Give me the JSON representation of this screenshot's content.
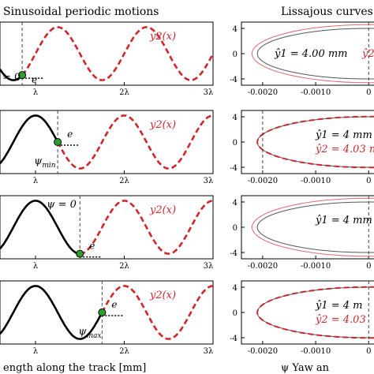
{
  "figure": {
    "left_title": "Sinusoidal periodic motions",
    "right_title": "Lissajous curves",
    "left_xlabel": "ength along the track [mm]",
    "right_xlabel": "ψ Yaw an",
    "left_xticks": [
      "λ",
      "2λ",
      "3λ"
    ],
    "right_xticks": [
      "-0.0020",
      "-0.0010",
      "0"
    ],
    "right_yticks": [
      "4",
      "0",
      "-4"
    ],
    "colors": {
      "y1": "#000000",
      "y2": "#d0262b",
      "marker": "#2aa02b",
      "thin": "#e06a6e"
    }
  },
  "chart_data": [
    {
      "type": "line",
      "panel": "left",
      "row": 1,
      "x_unit": "λ",
      "xlim": [
        0.6,
        3.0
      ],
      "series": [
        {
          "name": "y_1",
          "style": "black solid",
          "x_range": [
            0.6,
            0.85
          ],
          "amplitude": 1,
          "phase_offset": 0
        },
        {
          "name": "y2(x)",
          "style": "red dashed",
          "x_range": [
            0.85,
            3.0
          ],
          "amplitude": 1,
          "phase_offset": 0
        }
      ],
      "annotations": {
        "legend": "y2(x)",
        "e_label": "e",
        "psi_label": "= 0",
        "marker_x": 0.85
      }
    },
    {
      "type": "line",
      "panel": "left",
      "row": 2,
      "x_unit": "λ",
      "xlim": [
        0.6,
        3.0
      ],
      "series": [
        {
          "name": "y_1",
          "style": "black solid",
          "x_range": [
            0.6,
            1.25
          ],
          "amplitude": 1,
          "phase_offset": 0.25
        },
        {
          "name": "y2(x)",
          "style": "red dashed",
          "x_range": [
            1.25,
            3.0
          ],
          "amplitude": 1,
          "phase_offset": 0.25
        }
      ],
      "annotations": {
        "legend": "y2(x)",
        "e_label": "e",
        "psi_label": "ψ_min",
        "marker_x": 1.25
      }
    },
    {
      "type": "line",
      "panel": "left",
      "row": 3,
      "x_unit": "λ",
      "xlim": [
        0.6,
        3.0
      ],
      "series": [
        {
          "name": "y_1",
          "style": "black solid",
          "x_range": [
            0.6,
            1.5
          ],
          "amplitude": 1,
          "phase_offset": 0.25
        },
        {
          "name": "y2(x)",
          "style": "red dashed",
          "x_range": [
            1.5,
            3.0
          ],
          "amplitude": 1,
          "phase_offset": 0.25
        }
      ],
      "annotations": {
        "legend": "y2(x)",
        "e_label": "e",
        "psi_label": "ψ = 0",
        "marker_x": 1.5
      }
    },
    {
      "type": "line",
      "panel": "left",
      "row": 4,
      "x_unit": "λ",
      "xlim": [
        0.6,
        3.0
      ],
      "series": [
        {
          "name": "y_1",
          "style": "black solid",
          "x_range": [
            0.6,
            1.75
          ],
          "amplitude": 1,
          "phase_offset": 0.25
        },
        {
          "name": "y2(x)",
          "style": "red dashed",
          "x_range": [
            1.75,
            3.0
          ],
          "amplitude": 1,
          "phase_offset": 0.25
        }
      ],
      "annotations": {
        "legend": "y2(x)",
        "e_label": "e",
        "psi_label": "ψ_max",
        "marker_x": 1.75
      }
    },
    {
      "type": "line",
      "panel": "right",
      "row": 1,
      "xlim": [
        -0.0024,
        0.0001
      ],
      "ylim": [
        -5,
        5
      ],
      "series": [
        {
          "name": "y1 ellipse",
          "style": "black solid",
          "x_amplitude": 0.0021,
          "y_amplitude": 4.0
        },
        {
          "name": "y2 ellipse",
          "style": "red thin",
          "x_amplitude": 0.0022,
          "y_amplitude": 4.6
        }
      ],
      "annotations": {
        "dashed_vline_x": 0,
        "text_1": "ŷ1 = 4.00 mm",
        "text_2": "ŷ2"
      }
    },
    {
      "type": "line",
      "panel": "right",
      "row": 2,
      "xlim": [
        -0.0024,
        0.0001
      ],
      "ylim": [
        -5,
        5
      ],
      "series": [
        {
          "name": "y1 ellipse",
          "style": "black solid",
          "x_amplitude": 0.0021,
          "y_amplitude": 4.0
        },
        {
          "name": "y2 ellipse",
          "style": "red dashed",
          "x_amplitude": 0.0021,
          "y_amplitude": 4.03
        }
      ],
      "annotations": {
        "dashed_vline_x": -0.002,
        "text_1": "ŷ1 = 4 mm",
        "text_2": "ŷ2 = 4.03 m"
      }
    },
    {
      "type": "line",
      "panel": "right",
      "row": 3,
      "xlim": [
        -0.0024,
        0.0001
      ],
      "ylim": [
        -5,
        5
      ],
      "series": [
        {
          "name": "y1 ellipse",
          "style": "black solid",
          "x_amplitude": 0.0021,
          "y_amplitude": 4.0
        },
        {
          "name": "y2 ellipse",
          "style": "red thin",
          "x_amplitude": 0.0022,
          "y_amplitude": 4.6
        }
      ],
      "annotations": {
        "dashed_vline_x": 0,
        "text_1": "ŷ1 = 4 mm",
        "text_2": ""
      }
    },
    {
      "type": "line",
      "panel": "right",
      "row": 4,
      "xlim": [
        -0.0024,
        0.0001
      ],
      "ylim": [
        -5,
        5
      ],
      "series": [
        {
          "name": "y1 ellipse",
          "style": "black solid",
          "x_amplitude": 0.0021,
          "y_amplitude": 4.0
        },
        {
          "name": "y2 ellipse",
          "style": "red dashed",
          "x_amplitude": 0.0021,
          "y_amplitude": 4.03
        }
      ],
      "annotations": {
        "dashed_vline_x": 0,
        "text_1": "ŷ1 = 4 m",
        "text_2": "ŷ2 = 4.03"
      }
    }
  ]
}
